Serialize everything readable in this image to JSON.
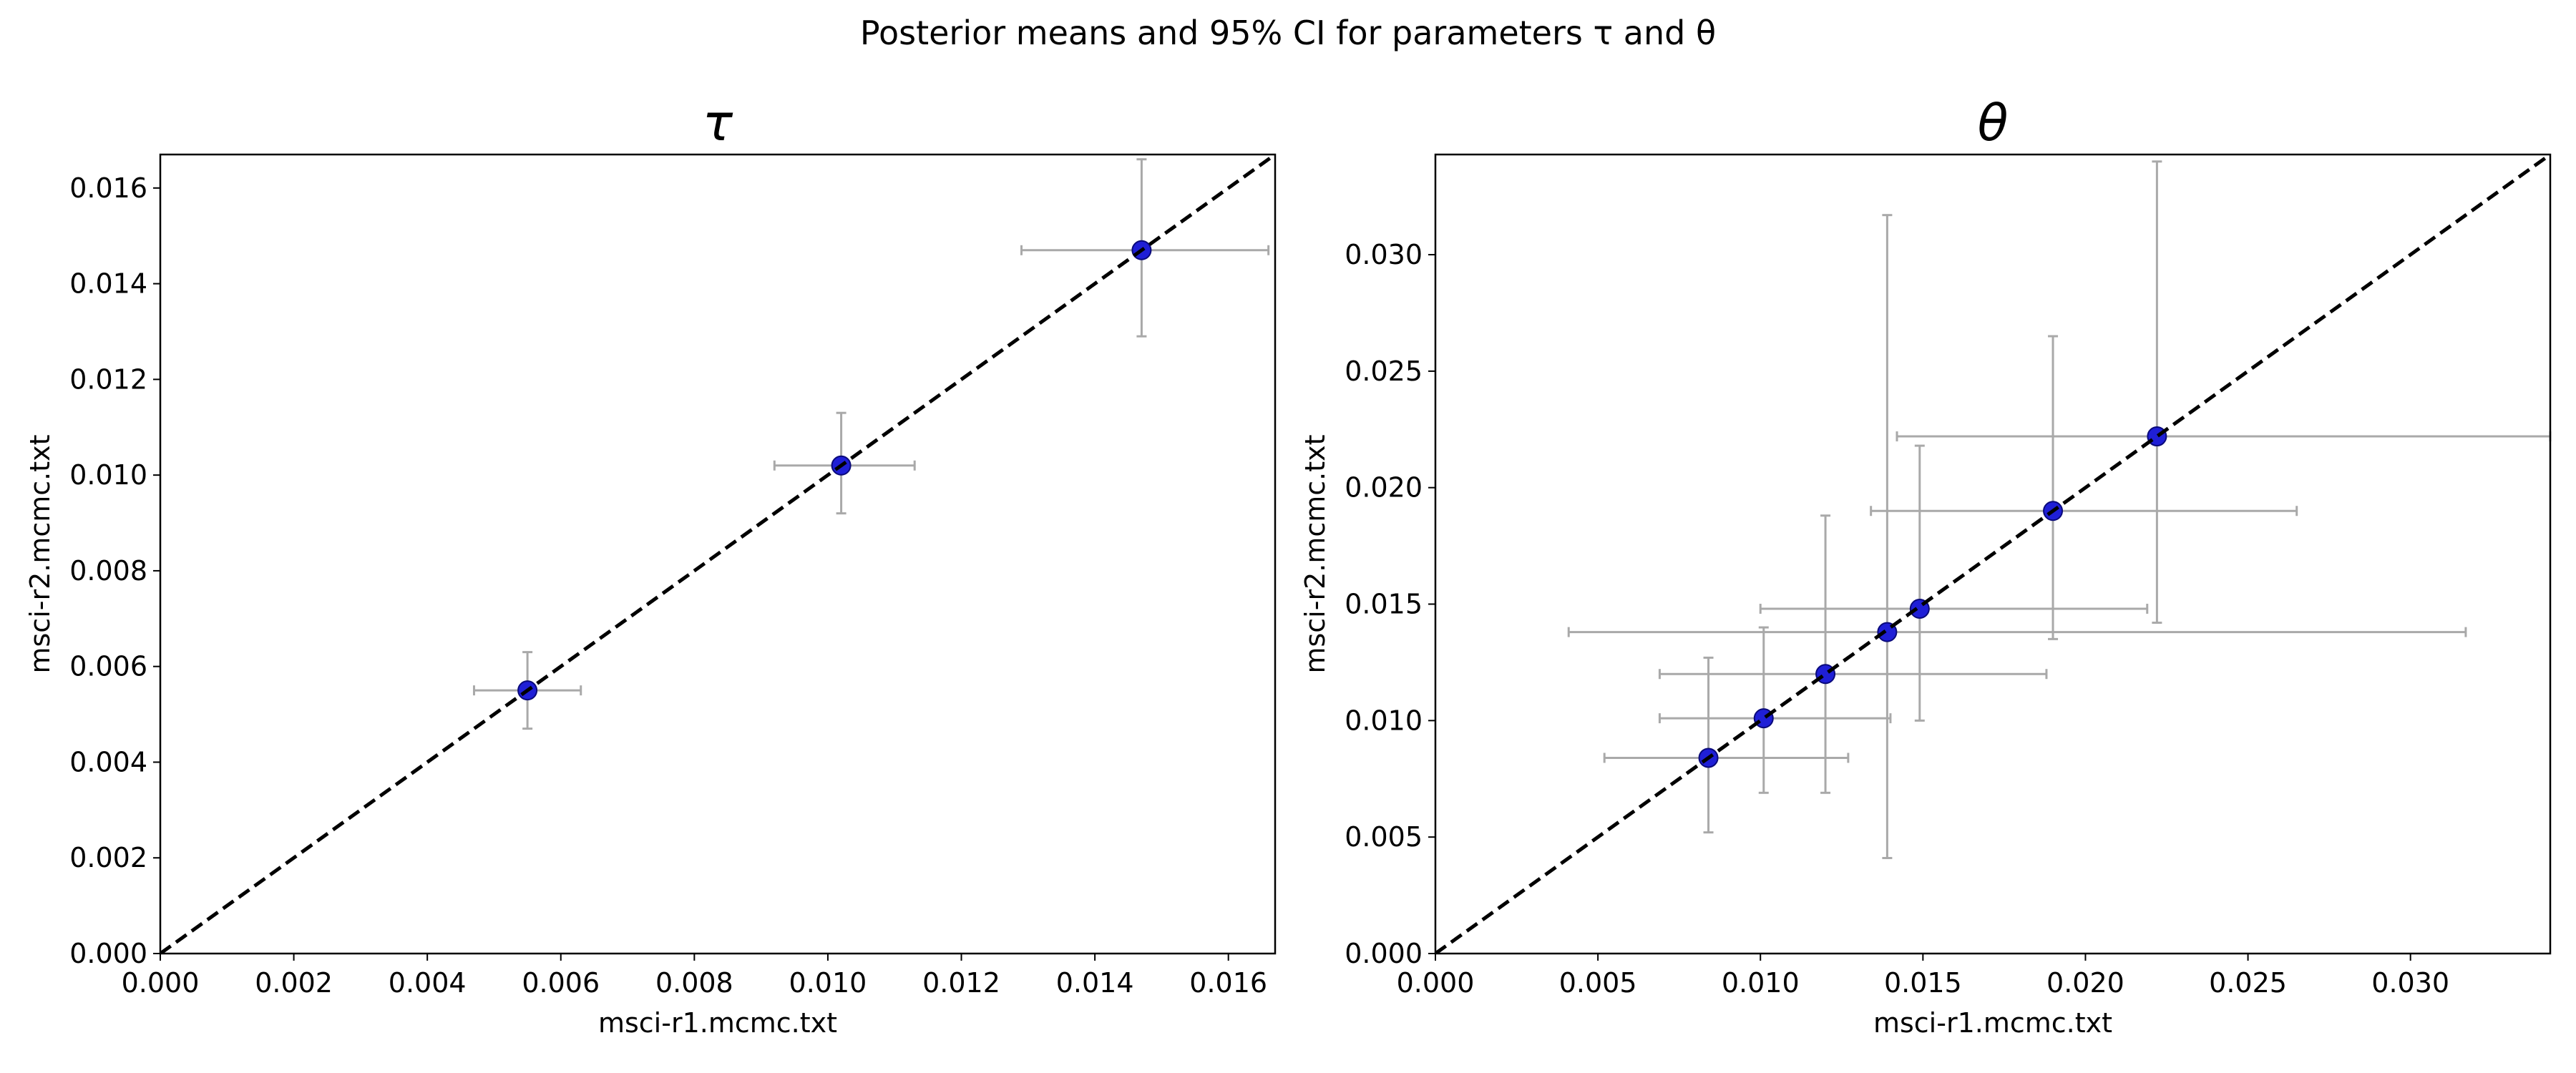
{
  "figure": {
    "suptitle": "Posterior means and 95% CI for parameters τ and θ"
  },
  "colors": {
    "point": "#1f1fd6",
    "errorbar": "#a9a9a9",
    "diagonal": "#000000",
    "axes": "#000000"
  },
  "chart_data": [
    {
      "type": "scatter",
      "title": "τ",
      "xlabel": "msci-r1.mcmc.txt",
      "ylabel": "msci-r2.mcmc.txt",
      "xlim": [
        0,
        0.0167
      ],
      "ylim": [
        0,
        0.0167
      ],
      "xticks": [
        "0.000",
        "0.002",
        "0.004",
        "0.006",
        "0.008",
        "0.010",
        "0.012",
        "0.014",
        "0.016"
      ],
      "yticks": [
        "0.000",
        "0.002",
        "0.004",
        "0.006",
        "0.008",
        "0.010",
        "0.012",
        "0.014",
        "0.016"
      ],
      "reference_line": "y = x (dashed)",
      "grid": false,
      "points": [
        {
          "x": 0.0055,
          "y": 0.0055,
          "x_ci": [
            0.0047,
            0.0063
          ],
          "y_ci": [
            0.0047,
            0.0063
          ]
        },
        {
          "x": 0.0102,
          "y": 0.0102,
          "x_ci": [
            0.0092,
            0.0113
          ],
          "y_ci": [
            0.0092,
            0.0113
          ]
        },
        {
          "x": 0.0147,
          "y": 0.0147,
          "x_ci": [
            0.0129,
            0.0166
          ],
          "y_ci": [
            0.0129,
            0.0166
          ]
        }
      ]
    },
    {
      "type": "scatter",
      "title": "θ",
      "xlabel": "msci-r1.mcmc.txt",
      "ylabel": "msci-r2.mcmc.txt",
      "xlim": [
        0,
        0.0343
      ],
      "ylim": [
        0,
        0.0343
      ],
      "xticks": [
        "0.000",
        "0.005",
        "0.010",
        "0.015",
        "0.020",
        "0.025",
        "0.030"
      ],
      "yticks": [
        "0.000",
        "0.005",
        "0.010",
        "0.015",
        "0.020",
        "0.025",
        "0.030"
      ],
      "reference_line": "y = x (dashed)",
      "grid": false,
      "points": [
        {
          "x": 0.0084,
          "y": 0.0084,
          "x_ci": [
            0.0052,
            0.0127
          ],
          "y_ci": [
            0.0052,
            0.0127
          ]
        },
        {
          "x": 0.0101,
          "y": 0.0101,
          "x_ci": [
            0.0069,
            0.014
          ],
          "y_ci": [
            0.0069,
            0.014
          ]
        },
        {
          "x": 0.012,
          "y": 0.012,
          "x_ci": [
            0.0069,
            0.0188
          ],
          "y_ci": [
            0.0069,
            0.0188
          ]
        },
        {
          "x": 0.0139,
          "y": 0.0138,
          "x_ci": [
            0.0041,
            0.0317
          ],
          "y_ci": [
            0.0041,
            0.0317
          ]
        },
        {
          "x": 0.0149,
          "y": 0.0148,
          "x_ci": [
            0.01,
            0.0219
          ],
          "y_ci": [
            0.01,
            0.0218
          ]
        },
        {
          "x": 0.019,
          "y": 0.019,
          "x_ci": [
            0.0134,
            0.0265
          ],
          "y_ci": [
            0.0135,
            0.0265
          ]
        },
        {
          "x": 0.0222,
          "y": 0.0222,
          "x_ci": [
            0.0142,
            0.0343
          ],
          "y_ci": [
            0.0142,
            0.034
          ]
        }
      ]
    }
  ]
}
